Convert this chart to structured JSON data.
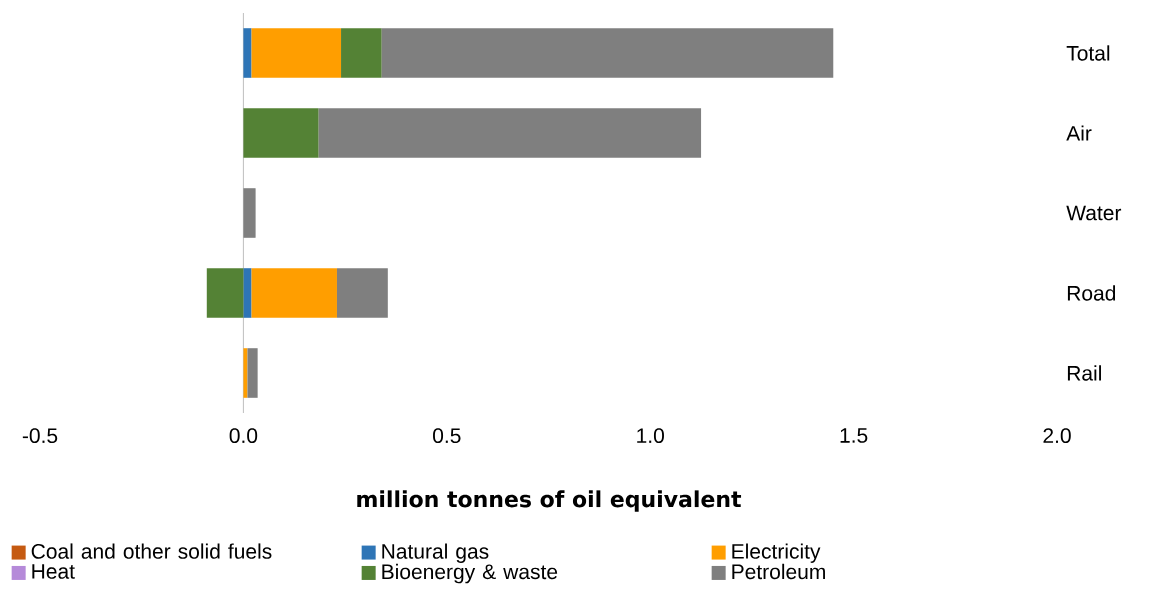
{
  "chart_data": {
    "type": "bar",
    "orientation": "horizontal",
    "stacked": true,
    "xlabel": "million tonnes of oil equivalent",
    "categories": [
      "Total",
      "Air",
      "Water",
      "Road",
      "Rail"
    ],
    "series": [
      {
        "name": "Coal and other solid fuels",
        "color": "#c55a11",
        "values": [
          0,
          0,
          0,
          0,
          0
        ]
      },
      {
        "name": "Natural gas",
        "color": "#2e75b6",
        "values": [
          0.02,
          0,
          0,
          0.02,
          0
        ]
      },
      {
        "name": "Electricity",
        "color": "#ff9e00",
        "values": [
          0.22,
          0,
          0,
          0.21,
          0.01
        ]
      },
      {
        "name": "Heat",
        "color": "#b58ad9",
        "values": [
          0,
          0,
          0,
          0,
          0
        ]
      },
      {
        "name": "Bioenergy & waste",
        "color": "#548235",
        "values": [
          0.1,
          0.185,
          0,
          -0.09,
          0
        ]
      },
      {
        "name": "Petroleum",
        "color": "#7f7f7f",
        "values": [
          1.11,
          0.94,
          0.03,
          0.125,
          0.025
        ]
      }
    ],
    "xlim": [
      -0.5,
      2.0
    ],
    "xticks": [
      {
        "value": -0.5,
        "label": "-0.5"
      },
      {
        "value": 0,
        "label": "0.0"
      },
      {
        "value": 0.5,
        "label": "0.5"
      },
      {
        "value": 1,
        "label": "1.0"
      },
      {
        "value": 1.5,
        "label": "1.5"
      },
      {
        "value": 2,
        "label": "2.0"
      }
    ],
    "legend": "bottom"
  }
}
